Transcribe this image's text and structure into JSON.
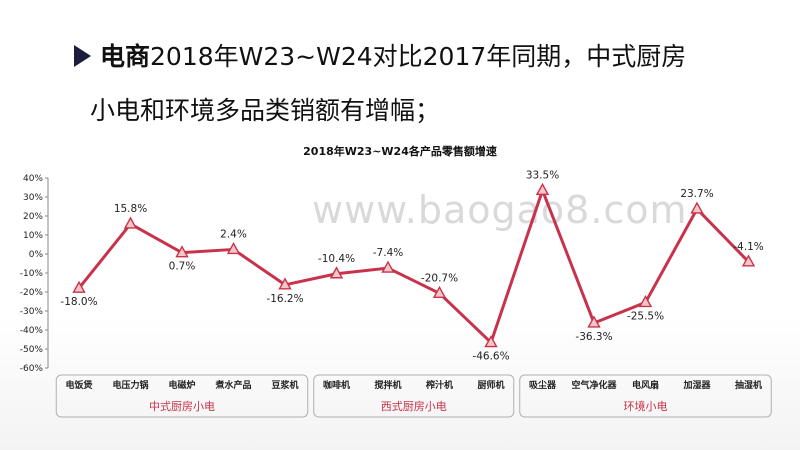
{
  "heading": {
    "bold_prefix": "电商",
    "line1_rest": "2018年W23~W24对比2017年同期，中式厨房",
    "line2": "小电和环境多品类销额有增幅；"
  },
  "watermark": "www.baogao8.com",
  "colors": {
    "line": "#c8324a",
    "marker_fill": "#f4c6c6",
    "group_border": "#b0b0b0",
    "group_text": "#c8324a",
    "bullet": "#1c1c3c"
  },
  "chart_data": {
    "type": "line",
    "title": "2018年W23~W24各产品零售额增速",
    "categories": [
      "电饭煲",
      "电压力锅",
      "电磁炉",
      "煮水产品",
      "豆浆机",
      "咖啡机",
      "搅拌机",
      "榨汁机",
      "厨师机",
      "吸尘器",
      "空气净化器",
      "电风扇",
      "加湿器",
      "抽湿机"
    ],
    "values": [
      -18.0,
      15.8,
      0.7,
      2.4,
      -16.2,
      -10.4,
      -7.4,
      -20.7,
      -46.6,
      33.5,
      -36.3,
      -25.5,
      23.7,
      -4.1
    ],
    "data_labels": [
      "-18.0%",
      "15.8%",
      "0.7%",
      "2.4%",
      "-16.2%",
      "-10.4%",
      "-7.4%",
      "-20.7%",
      "-46.6%",
      "33.5%",
      "-36.3%",
      "-25.5%",
      "23.7%",
      "-4.1%"
    ],
    "yticks": [
      "40%",
      "30%",
      "20%",
      "10%",
      "0%",
      "-10%",
      "-20%",
      "-30%",
      "-40%",
      "-50%",
      "-60%"
    ],
    "ylim": [
      -60,
      40
    ],
    "grid": false,
    "legend": "none",
    "groups": [
      {
        "label": "中式厨房小电",
        "start": 0,
        "end": 4
      },
      {
        "label": "西式厨房小电",
        "start": 5,
        "end": 8
      },
      {
        "label": "环境小电",
        "start": 9,
        "end": 13
      }
    ]
  }
}
